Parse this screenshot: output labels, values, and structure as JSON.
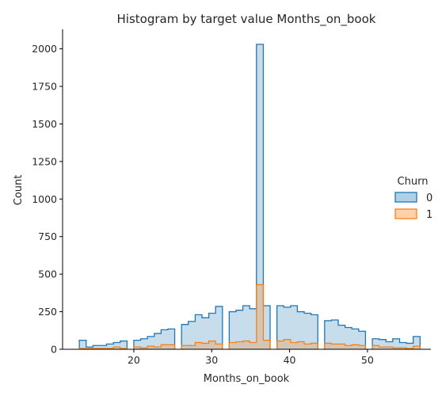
{
  "chart_data": {
    "type": "histogram",
    "title": "Histogram by target value Months_on_book",
    "xlabel": "Months_on_book",
    "ylabel": "Count",
    "xlim": [
      10.85,
      58.15
    ],
    "ylim": [
      0,
      2130
    ],
    "xticks": [
      20,
      30,
      40,
      50
    ],
    "yticks": [
      0,
      250,
      500,
      750,
      1000,
      1250,
      1500,
      1750,
      2000
    ],
    "bin_edges": [
      13,
      13.88,
      14.75,
      15.63,
      16.5,
      17.38,
      18.25,
      19.13,
      20,
      20.88,
      21.75,
      22.63,
      23.5,
      24.38,
      25.25,
      26.13,
      27,
      27.88,
      28.75,
      29.63,
      30.5,
      31.38,
      32.25,
      33.13,
      34,
      34.88,
      35.75,
      36.63,
      37.5,
      38.38,
      39.25,
      40.13,
      41,
      41.88,
      42.75,
      43.63,
      44.5,
      45.38,
      46.25,
      47.13,
      48,
      48.88,
      49.75,
      50.63,
      51.5,
      52.38,
      53.25,
      54.13,
      55,
      55.88
    ],
    "legend": {
      "title": "Churn",
      "position": "center-right"
    },
    "series": [
      {
        "name": "0",
        "color": "#1f77b4",
        "fill_alpha": 0.25,
        "values": [
          60,
          15,
          25,
          25,
          35,
          45,
          55,
          0,
          60,
          70,
          85,
          105,
          130,
          135,
          0,
          165,
          185,
          230,
          210,
          240,
          285,
          0,
          250,
          260,
          290,
          270,
          2030,
          290,
          0,
          290,
          280,
          290,
          250,
          240,
          230,
          0,
          190,
          195,
          160,
          145,
          135,
          120,
          0,
          70,
          65,
          50,
          70,
          45,
          40,
          85
        ]
      },
      {
        "name": "1",
        "color": "#ff7f0e",
        "fill_alpha": 0.25,
        "values": [
          5,
          5,
          5,
          5,
          5,
          15,
          5,
          0,
          15,
          10,
          20,
          15,
          30,
          30,
          0,
          25,
          25,
          45,
          40,
          55,
          35,
          0,
          45,
          50,
          55,
          45,
          430,
          60,
          0,
          55,
          65,
          45,
          50,
          35,
          40,
          0,
          40,
          35,
          35,
          25,
          30,
          25,
          0,
          25,
          15,
          15,
          10,
          10,
          5,
          20
        ]
      }
    ]
  }
}
